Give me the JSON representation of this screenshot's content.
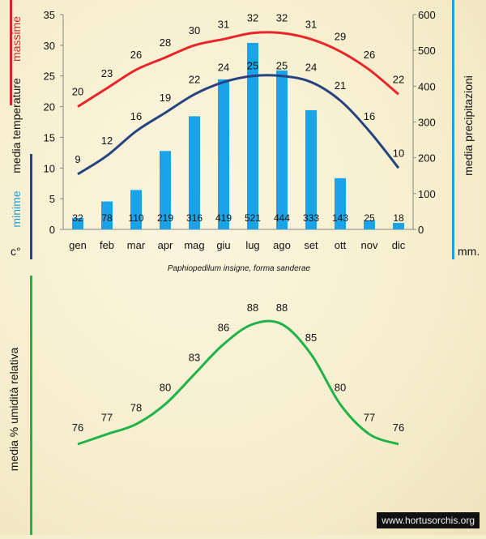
{
  "caption": "Paphiopedilum insigne, forma sanderae",
  "watermark": "www.hortusorchis.org",
  "labels": {
    "massime": "massime",
    "media_temperature": "media  temperature",
    "minime": "minime",
    "degree_unit": "c°",
    "media_precipitazioni": "media  precipitazioni",
    "mm_unit": "mm.",
    "media_umidita": "media % umidità relativa"
  },
  "colors": {
    "max_line": "#e8262a",
    "min_line": "#26447f",
    "bars": "#1aa3e6",
    "humidity_line": "#21b24a",
    "red_bar": "#d9232a",
    "dark_blue_bar": "#27457e",
    "light_blue_bar": "#21a0dd",
    "green_bar": "#21b24a"
  },
  "chart_data": [
    {
      "type": "bar+line",
      "categories": [
        "gen",
        "feb",
        "mar",
        "apr",
        "mag",
        "giu",
        "lug",
        "ago",
        "set",
        "ott",
        "nov",
        "dic"
      ],
      "series": [
        {
          "name": "massime",
          "axis": "left",
          "kind": "line",
          "values": [
            20,
            23,
            26,
            28,
            30,
            31,
            32,
            32,
            31,
            29,
            26,
            22
          ]
        },
        {
          "name": "minime",
          "axis": "left",
          "kind": "line",
          "values": [
            9,
            12,
            16,
            19,
            22,
            24,
            25,
            25,
            24,
            21,
            16,
            10
          ]
        },
        {
          "name": "media precipitazioni",
          "axis": "right",
          "kind": "bar",
          "values": [
            32,
            78,
            110,
            219,
            316,
            419,
            521,
            444,
            333,
            143,
            25,
            18
          ]
        }
      ],
      "y_left": {
        "label": "media temperature (c°)",
        "lim": [
          0,
          35
        ],
        "ticks": [
          0,
          5,
          10,
          15,
          20,
          25,
          30,
          35
        ]
      },
      "y_right": {
        "label": "media precipitazioni (mm.)",
        "lim": [
          0,
          600
        ],
        "ticks": [
          0,
          100,
          200,
          300,
          400,
          500,
          600
        ]
      }
    },
    {
      "type": "line",
      "categories": [
        "gen",
        "feb",
        "mar",
        "apr",
        "mag",
        "giu",
        "lug",
        "ago",
        "set",
        "ott",
        "nov",
        "dic"
      ],
      "series": [
        {
          "name": "media % umidità relativa",
          "values": [
            76,
            77,
            78,
            80,
            83,
            86,
            88,
            88,
            85,
            80,
            77,
            76
          ]
        }
      ],
      "ylabel": "media % umidità relativa"
    }
  ]
}
